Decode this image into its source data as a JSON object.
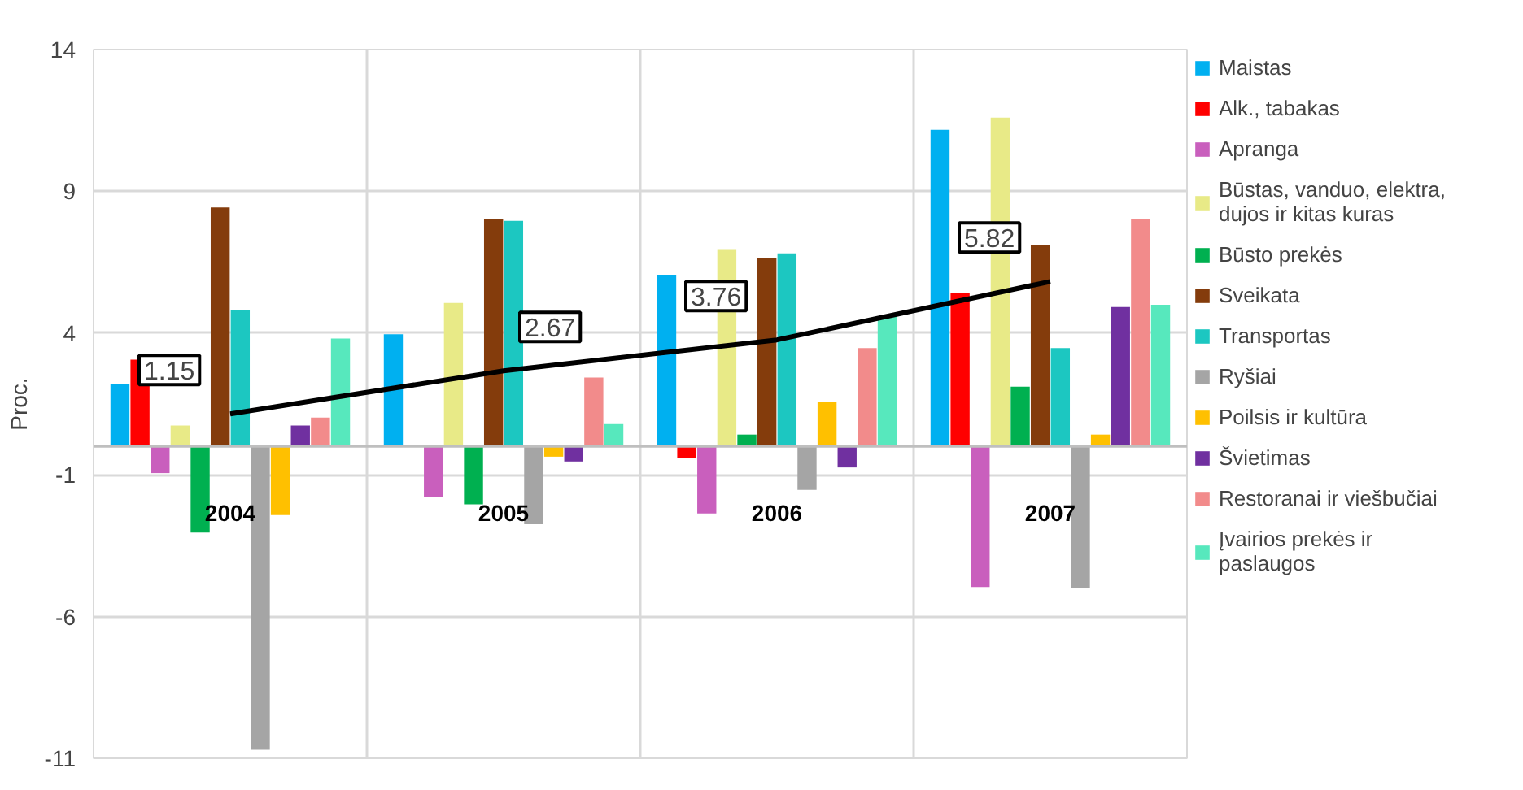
{
  "chart_data": {
    "type": "bar",
    "ylabel": "Proc.",
    "categories": [
      "2004",
      "2005",
      "2006",
      "2007"
    ],
    "ylim": [
      -11,
      14
    ],
    "yticks": [
      -11,
      -6,
      -1,
      4,
      9,
      14
    ],
    "grid": true,
    "legend": "right",
    "series": [
      {
        "name": "Maistas",
        "color": "#00b0f0",
        "values": [
          2.2,
          3.96,
          6.06,
          11.17
        ]
      },
      {
        "name": "Alk., tabakas",
        "color": "#ff0000",
        "values": [
          3.06,
          0,
          -0.4,
          5.43
        ]
      },
      {
        "name": "Apranga",
        "color": "#c95fbd",
        "values": [
          -0.94,
          -1.79,
          -2.36,
          -4.96
        ]
      },
      {
        "name": "Būstas, vanduo, elektra, dujos ir kitas kuras",
        "color": "#e8ea87",
        "values": [
          0.74,
          5.06,
          6.96,
          11.6
        ]
      },
      {
        "name": "Būsto prekės",
        "color": "#00b050",
        "values": [
          -3.04,
          -2.04,
          0.42,
          2.11
        ]
      },
      {
        "name": "Sveikata",
        "color": "#843c0c",
        "values": [
          8.43,
          8.02,
          6.64,
          7.11
        ]
      },
      {
        "name": "Transportas",
        "color": "#1cc7c1",
        "values": [
          4.81,
          7.96,
          6.81,
          3.47
        ]
      },
      {
        "name": "Ryšiai",
        "color": "#a5a5a5",
        "values": [
          -10.7,
          -2.74,
          -1.53,
          -5.0
        ]
      },
      {
        "name": "Poilsis ir kultūra",
        "color": "#ffc000",
        "values": [
          -2.42,
          -0.36,
          1.58,
          0.42
        ]
      },
      {
        "name": "Švietimas",
        "color": "#7030a0",
        "values": [
          0.74,
          -0.53,
          -0.74,
          4.92
        ]
      },
      {
        "name": "Restoranai ir viešbučiai",
        "color": "#f28b8b",
        "values": [
          1.02,
          2.43,
          3.47,
          8.02
        ]
      },
      {
        "name": "Įvairios prekės ir paslaugos",
        "color": "#57e8bd",
        "values": [
          3.81,
          0.79,
          4.57,
          5.0
        ]
      },
      {
        "type": "line",
        "color": "#000000",
        "values": [
          1.15,
          2.67,
          3.76,
          5.82
        ],
        "value_labels": [
          "1.15",
          "2.67",
          "3.76",
          "5.82"
        ]
      }
    ]
  }
}
